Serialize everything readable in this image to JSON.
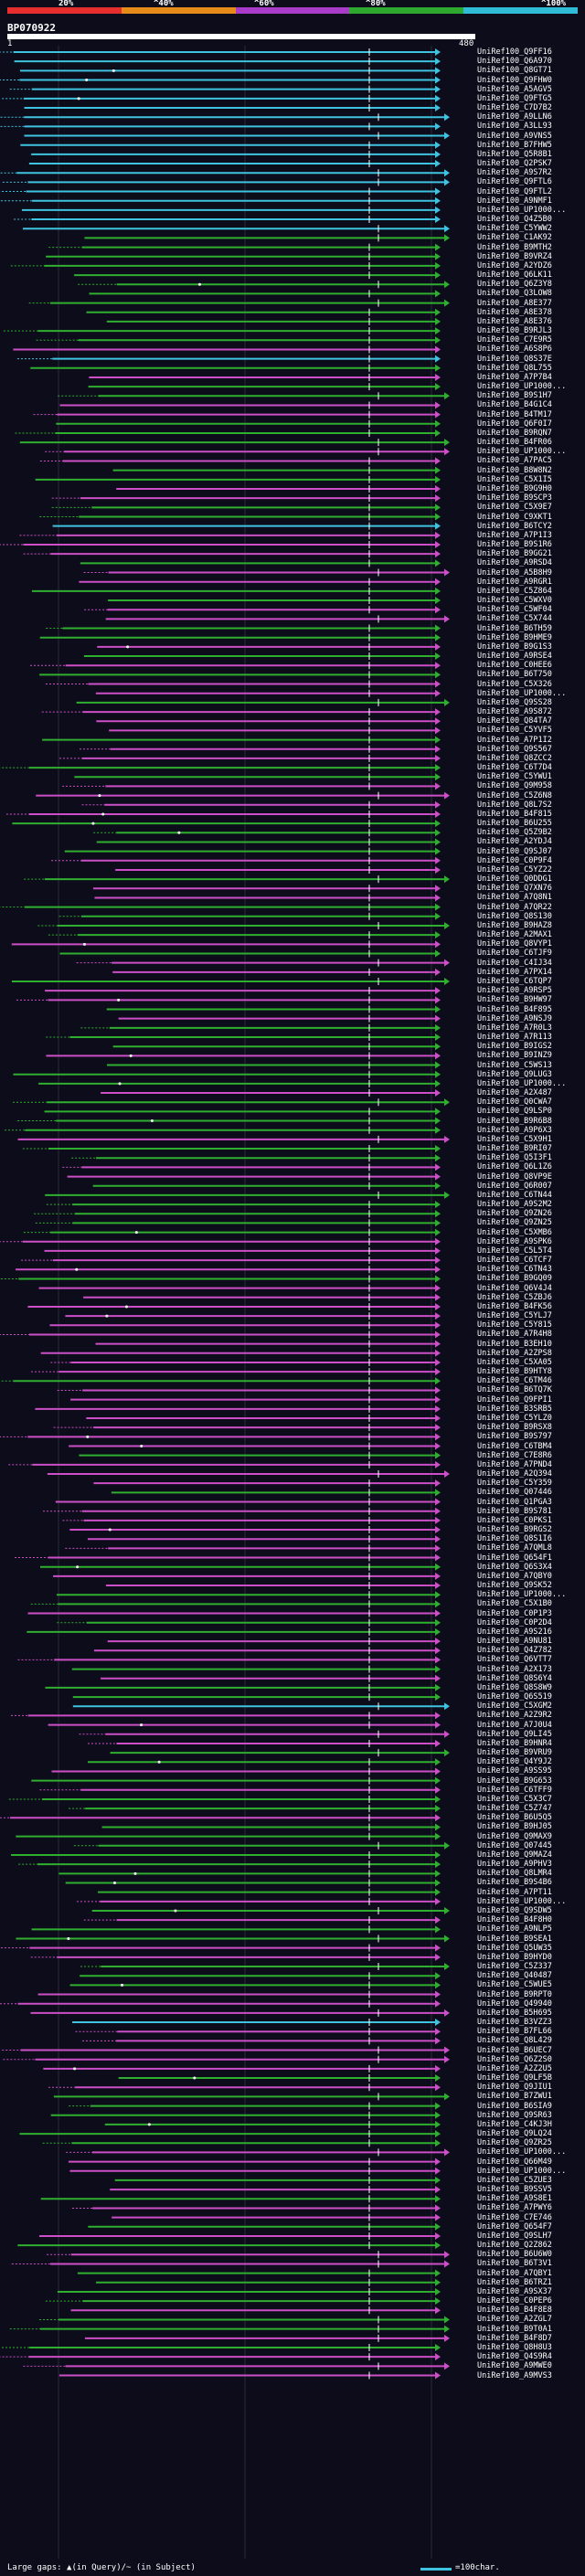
{
  "legend": {
    "labels": [
      "20%",
      "^40%",
      "^60%",
      "^80%",
      "^100%"
    ],
    "colors": [
      "#e62e2e",
      "#e68a1a",
      "#a83cc8",
      "#2ea82e",
      "#2ebcd6"
    ]
  },
  "query": {
    "name": "BP070922",
    "start": "1",
    "end": "480"
  },
  "footer": {
    "large_gaps": "Large gaps: ▲(in Query)/~ (in Subject)",
    "scale": "=100char."
  },
  "colors": {
    "cyan": "#3fc3e0",
    "green": "#2fae2f",
    "magenta": "#cc4fc8",
    "white": "#ffffff"
  },
  "hits": [
    "UniRef100_Q9FF16",
    "UniRef100_Q6A970",
    "UniRef100_Q8GT71",
    "UniRef100_Q9FHW0",
    "UniRef100_A5AGV5",
    "UniRef100_Q9FTG5",
    "UniRef100_C7D7B2",
    "UniRef100_A9LLN6",
    "UniRef100_A3LL93",
    "UniRef100_A9VNS5",
    "UniRef100_B7FHW5",
    "UniRef100_Q5R8B1",
    "UniRef100_Q2PSK7",
    "UniRef100_A9S7R2",
    "UniRef100_Q9FTL6",
    "UniRef100_Q9FTL2",
    "UniRef100_A9NMF1",
    "UniRef100_UP1000...",
    "UniRef100_Q4Z5B0",
    "UniRef100_C5YWW2",
    "UniRef100_C1AK92",
    "UniRef100_B9MTH2",
    "UniRef100_B9VRZ4",
    "UniRef100_A2YDZ6",
    "UniRef100_Q6LK11",
    "UniRef100_Q6Z3Y8",
    "UniRef100_Q3LOW8",
    "UniRef100_A8E377",
    "UniRef100_A8E378",
    "UniRef100_A8E376",
    "UniRef100_B9RJL3",
    "UniRef100_C7E9R5",
    "UniRef100_A6S8P6",
    "UniRef100_Q8S37E",
    "UniRef100_Q8L755",
    "UniRef100_A7P7B4",
    "UniRef100_UP1000...",
    "UniRef100_B9S1H7",
    "UniRef100_B4G1C4",
    "UniRef100_B4TM17",
    "UniRef100_Q6F0I7",
    "UniRef100_B9RQN7",
    "UniRef100_B4FR06",
    "UniRef100_UP1000...",
    "UniRef100_A7PAC5",
    "UniRef100_B8W8N2",
    "UniRef100_C5X1I5",
    "UniRef100_B9G9H0",
    "UniRef100_B9SCP3",
    "UniRef100_C5X9E7",
    "UniRef100_C9XKT1",
    "UniRef100_B6TCY2",
    "UniRef100_A7P1I3",
    "UniRef100_B9S1R6",
    "UniRef100_B9GG21",
    "UniRef100_A9RSD4",
    "UniRef100_A5B8H9",
    "UniRef100_A9RGR1",
    "UniRef100_C5Z864",
    "UniRef100_C5WXV0",
    "UniRef100_C5WF04",
    "UniRef100_C5X744",
    "UniRef100_B6TH59",
    "UniRef100_B9HME9",
    "UniRef100_B9G1S3",
    "UniRef100_A9RSE4",
    "UniRef100_C0HEE6",
    "UniRef100_B6T750",
    "UniRef100_C5X326",
    "UniRef100_UP1000...",
    "UniRef100_Q9SS28",
    "UniRef100_A9S872",
    "UniRef100_Q84TA7",
    "UniRef100_C5YVF5",
    "UniRef100_A7P1I2",
    "UniRef100_Q9S567",
    "UniRef100_Q8ZCC2",
    "UniRef100_C6T7D4",
    "UniRef100_C5YWU1",
    "UniRef100_Q9M958",
    "UniRef100_C5Z6N8",
    "UniRef100_Q8L7S2",
    "UniRef100_B4F815",
    "UniRef100_B6U255",
    "UniRef100_Q5Z9B2",
    "UniRef100_A2YDJ4",
    "UniRef100_Q9SJ07",
    "UniRef100_C0P9F4",
    "UniRef100_C5YZ22",
    "UniRef100_Q0DDG1",
    "UniRef100_Q7XN76",
    "UniRef100_A7Q8N1",
    "UniRef100_A7QR22",
    "UniRef100_Q8S130",
    "UniRef100_B9HAZ8",
    "UniRef100_A2MAX1",
    "UniRef100_Q8VYP1",
    "UniRef100_C6TJF9",
    "UniRef100_C4IJ34",
    "UniRef100_A7PX14",
    "UniRef100_C6TQP7",
    "UniRef100_A9RSP5",
    "UniRef100_B9HW97",
    "UniRef100_B4F895",
    "UniRef100_A9NSJ9",
    "UniRef100_A7R0L3",
    "UniRef100_A7R113",
    "UniRef100_B9IGS2",
    "UniRef100_B9INZ9",
    "UniRef100_C5WS13",
    "UniRef100_Q9LUG3",
    "UniRef100_UP1000...",
    "UniRef100_A2X487",
    "UniRef100_Q0CWA7",
    "UniRef100_Q9LSP0",
    "UniRef100_B9R6B8",
    "UniRef100_A9P6X3",
    "UniRef100_C5X9H1",
    "UniRef100_B9RI07",
    "UniRef100_Q5I3F1",
    "UniRef100_Q6L1Z6",
    "UniRef100_Q8VP9E",
    "UniRef100_Q6R007",
    "UniRef100_C6TN44",
    "UniRef100_A9S2M2",
    "UniRef100_Q9ZN26",
    "UniRef100_Q9ZN25",
    "UniRef100_C5XMB6",
    "UniRef100_A9SPK6",
    "UniRef100_C5L5T4",
    "UniRef100_C6TCF7",
    "UniRef100_C6TN43",
    "UniRef100_B9GQ09",
    "UniRef100_Q6V4J4",
    "UniRef100_C5ZBJ6",
    "UniRef100_B4FK56",
    "UniRef100_C5YLJ7",
    "UniRef100_C5Y815",
    "UniRef100_A7R4H8",
    "UniRef100_B3EH10",
    "UniRef100_A2ZPS8",
    "UniRef100_C5XA05",
    "UniRef100_B9HTY8",
    "UniRef100_C6TM46",
    "UniRef100_B6TQ7K",
    "UniRef100_Q9FPI1",
    "UniRef100_B3SRB5",
    "UniRef100_C5YLZ0",
    "UniRef100_B9RSX8",
    "UniRef100_B9S797",
    "UniRef100_C6TBM4",
    "UniRef100_C7E8R6",
    "UniRef100_A7PND4",
    "UniRef100_A2Q394",
    "UniRef100_C5Y359",
    "UniRef100_Q07446",
    "UniRef100_Q1PGA3",
    "UniRef100_B9S781",
    "UniRef100_C0PKS1",
    "UniRef100_B9RGS2",
    "UniRef100_Q8S1I6",
    "UniRef100_A7QML8",
    "UniRef100_Q654F1",
    "UniRef100_Q6S3X4",
    "UniRef100_A7QBY0",
    "UniRef100_Q9SK52",
    "UniRef100_UP1000...",
    "UniRef100_C5X1B0",
    "UniRef100_C0P1P3",
    "UniRef100_C0P2D4",
    "UniRef100_A9S216",
    "UniRef100_A9NU81",
    "UniRef100_Q4Z782",
    "UniRef100_Q6VTT7",
    "UniRef100_A2X173",
    "UniRef100_Q8S6Y4",
    "UniRef100_Q8S8W9",
    "UniRef100_Q6S519",
    "UniRef100_C5XGM2",
    "UniRef100_A2Z9R2",
    "UniRef100_A7J0U4",
    "UniRef100_Q9LI45",
    "UniRef100_B9HNR4",
    "UniRef100_B9VRU9",
    "UniRef100_Q4Y9J2",
    "UniRef100_A9SS95",
    "UniRef100_B9G653",
    "UniRef100_C6TFF9",
    "UniRef100_C5X3C7",
    "UniRef100_C5Z747",
    "UniRef100_B6U5Q5",
    "UniRef100_B9HJ05",
    "UniRef100_Q9MAX9",
    "UniRef100_Q07445",
    "UniRef100_Q9MAZ4",
    "UniRef100_A9PHV3",
    "UniRef100_Q8LMR4",
    "UniRef100_B9S4B6",
    "UniRef100_A7PT11",
    "UniRef100_UP1000...",
    "UniRef100_Q9SDW5",
    "UniRef100_B4F8H0",
    "UniRef100_A9NLP5",
    "UniRef100_B9SEA1",
    "UniRef100_Q5UW35",
    "UniRef100_B9HYD0",
    "UniRef100_C5Z337",
    "UniRef100_Q40487",
    "UniRef100_C5WUE5",
    "UniRef100_B9RPT0",
    "UniRef100_Q49940",
    "UniRef100_B5H695",
    "UniRef100_B3VZZ3",
    "UniRef100_B7FL66",
    "UniRef100_Q8L429",
    "UniRef100_B6UEC7",
    "UniRef100_Q6Z2S0",
    "UniRef100_A2Z2U5",
    "UniRef100_Q9LF5B",
    "UniRef100_Q9JIU1",
    "UniRef100_B7ZWU1",
    "UniRef100_B6SIA9",
    "UniRef100_Q9SR63",
    "UniRef100_C4KJ3H",
    "UniRef100_Q9LQ24",
    "UniRef100_Q9ZR25",
    "UniRef100_UP1000...",
    "UniRef100_Q66M49",
    "UniRef100_UP1000...",
    "UniRef100_C5ZUE3",
    "UniRef100_B9SSV5",
    "UniRef100_A9S8E1",
    "UniRef100_A7PWY6",
    "UniRef100_C7E746",
    "UniRef100_Q654F7",
    "UniRef100_Q9SLH7",
    "UniRef100_Q2Z862",
    "UniRef100_B6U6W0",
    "UniRef100_B6T3V1",
    "UniRef100_A7QBY1",
    "UniRef100_B6TRZ1",
    "UniRef100_A9SX37",
    "UniRef100_C0PEP6",
    "UniRef100_B4F8E8",
    "UniRef100_A2ZGL7",
    "UniRef100_B9T0A1",
    "UniRef100_B4F8D7",
    "UniRef100_Q8H8U3",
    "UniRef100_Q4S9R4",
    "UniRef100_A9MWE0",
    "UniRef100_A9MVS3"
  ]
}
